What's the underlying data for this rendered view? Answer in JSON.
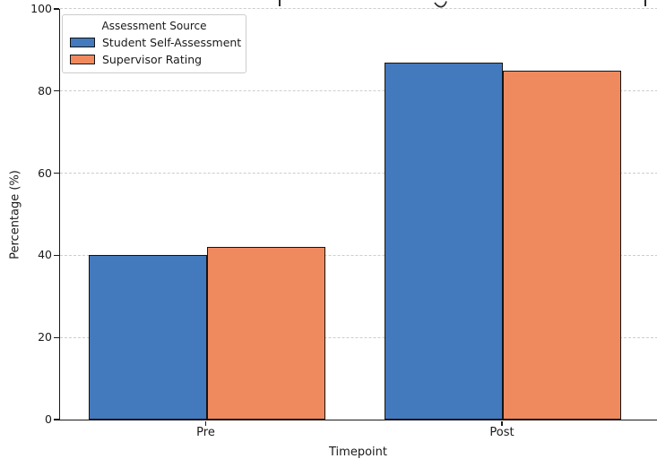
{
  "chart_data": {
    "type": "bar",
    "title": "",
    "title_note": "title clipped off top of image; only letter descenders visible",
    "categories": [
      "Pre",
      "Post"
    ],
    "series": [
      {
        "name": "Student Self-Assessment",
        "color": "#4379BD",
        "values": [
          40,
          87
        ]
      },
      {
        "name": "Supervisor Rating",
        "color": "#EF8A5F",
        "values": [
          42,
          85
        ]
      }
    ],
    "xlabel": "Timepoint",
    "ylabel": "Percentage (%)",
    "ylim": [
      0,
      100
    ],
    "yticks": [
      0,
      20,
      40,
      60,
      80,
      100
    ],
    "grid": "horizontal-dashed",
    "bar_edge_color": "#141414",
    "legend": {
      "title": "Assessment Source",
      "position": "upper-left"
    }
  }
}
